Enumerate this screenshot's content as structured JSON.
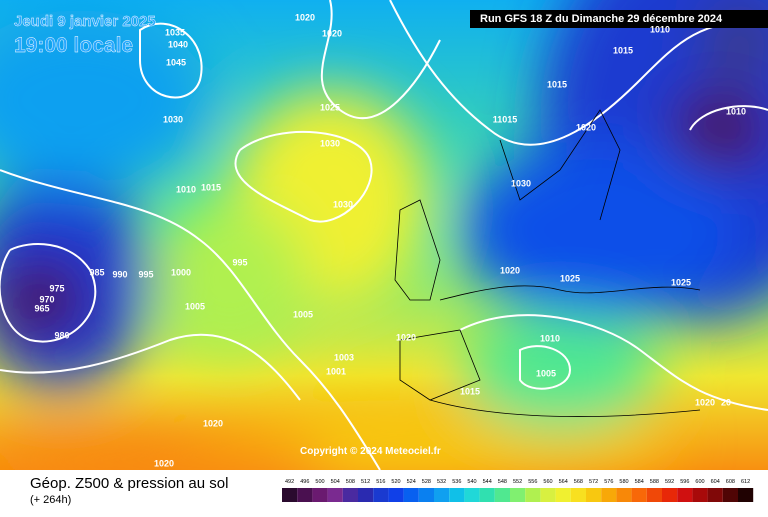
{
  "header": {
    "date": "Jeudi 9 janvier 2025",
    "time": "19:00 locale",
    "run": "Run GFS 18 Z du Dimanche 29 décembre 2024"
  },
  "map": {
    "copyright": "Copyright © 2024 Meteociel.fr",
    "isobar_labels": [
      "1020",
      "1020",
      "1035",
      "1040",
      "1045",
      "1025",
      "1030",
      "1030",
      "1010",
      "1015",
      "1030",
      "985",
      "990",
      "995",
      "1000",
      "995",
      "975",
      "970",
      "965",
      "980",
      "1005",
      "1005",
      "1003",
      "1001",
      "1020",
      "1015",
      "1020",
      "1020",
      "1015",
      "11015",
      "1020",
      "1030",
      "1020",
      "1025",
      "1025",
      "1010",
      "1005",
      "1020",
      "20",
      "1010",
      "1015",
      "1010"
    ]
  },
  "footer": {
    "title": "Géop. Z500 & pression au sol",
    "lead": "(+ 264h)"
  },
  "legend": {
    "values": [
      492,
      496,
      500,
      504,
      508,
      512,
      516,
      520,
      524,
      528,
      532,
      536,
      540,
      544,
      548,
      552,
      556,
      560,
      564,
      568,
      572,
      576,
      580,
      584,
      588,
      592,
      596,
      600,
      604,
      608,
      612
    ],
    "colors": [
      "#2a0a2e",
      "#4a1050",
      "#6a1a70",
      "#7a2a90",
      "#4a2aa0",
      "#2a2ab0",
      "#1a3ad0",
      "#1040e8",
      "#0860f0",
      "#0a80f0",
      "#10a0f0",
      "#10c0e8",
      "#20d8d8",
      "#30e0b0",
      "#50e890",
      "#80f070",
      "#b0f050",
      "#d8f040",
      "#f0f030",
      "#f8e020",
      "#f8c810",
      "#f8a808",
      "#f88808",
      "#f86808",
      "#f04808",
      "#e82808",
      "#d01010",
      "#a80a0a",
      "#800808",
      "#500505",
      "#200202"
    ]
  }
}
